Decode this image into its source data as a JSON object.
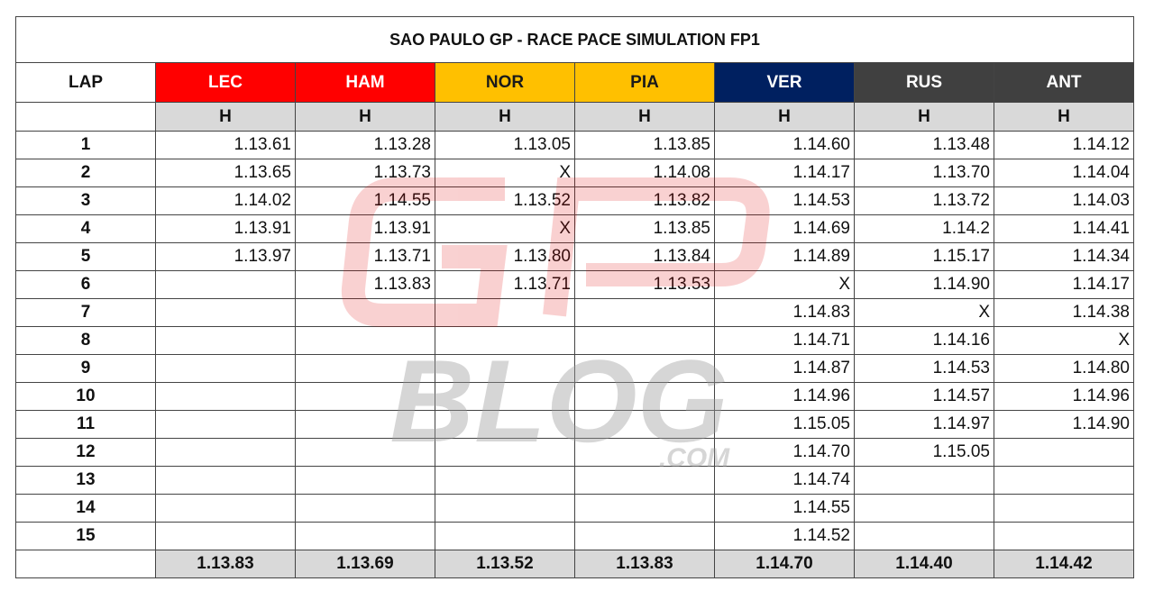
{
  "table": {
    "title": "SAO PAULO GP - RACE PACE SIMULATION FP1",
    "lap_header": "LAP",
    "drivers": [
      {
        "name": "LEC",
        "color": "#ff0000",
        "text_color": "#ffffff",
        "tyre": "H"
      },
      {
        "name": "HAM",
        "color": "#ff0000",
        "text_color": "#ffffff",
        "tyre": "H"
      },
      {
        "name": "NOR",
        "color": "#ffc000",
        "text_color": "#1a1a1a",
        "tyre": "H"
      },
      {
        "name": "PIA",
        "color": "#ffc000",
        "text_color": "#1a1a1a",
        "tyre": "H"
      },
      {
        "name": "VER",
        "color": "#002060",
        "text_color": "#ffffff",
        "tyre": "H"
      },
      {
        "name": "RUS",
        "color": "#404040",
        "text_color": "#ffffff",
        "tyre": "H"
      },
      {
        "name": "ANT",
        "color": "#404040",
        "text_color": "#ffffff",
        "tyre": "H"
      }
    ],
    "rows": [
      {
        "lap": 1,
        "times": [
          "1.13.61",
          "1.13.28",
          "1.13.05",
          "1.13.85",
          "1.14.60",
          "1.13.48",
          "1.14.12"
        ]
      },
      {
        "lap": 2,
        "times": [
          "1.13.65",
          "1.13.73",
          "X",
          "1.14.08",
          "1.14.17",
          "1.13.70",
          "1.14.04"
        ]
      },
      {
        "lap": 3,
        "times": [
          "1.14.02",
          "1.14.55",
          "1.13.52",
          "1.13.82",
          "1.14.53",
          "1.13.72",
          "1.14.03"
        ]
      },
      {
        "lap": 4,
        "times": [
          "1.13.91",
          "1.13.91",
          "X",
          "1.13.85",
          "1.14.69",
          "1.14.2",
          "1.14.41"
        ]
      },
      {
        "lap": 5,
        "times": [
          "1.13.97",
          "1.13.71",
          "1.13.80",
          "1.13.84",
          "1.14.89",
          "1.15.17",
          "1.14.34"
        ]
      },
      {
        "lap": 6,
        "times": [
          null,
          "1.13.83",
          "1.13.71",
          "1.13.53",
          "X",
          "1.14.90",
          "1.14.17"
        ]
      },
      {
        "lap": 7,
        "times": [
          null,
          null,
          null,
          null,
          "1.14.83",
          "X",
          "1.14.38"
        ]
      },
      {
        "lap": 8,
        "times": [
          null,
          null,
          null,
          null,
          "1.14.71",
          "1.14.16",
          "X"
        ]
      },
      {
        "lap": 9,
        "times": [
          null,
          null,
          null,
          null,
          "1.14.87",
          "1.14.53",
          "1.14.80"
        ]
      },
      {
        "lap": 10,
        "times": [
          null,
          null,
          null,
          null,
          "1.14.96",
          "1.14.57",
          "1.14.96"
        ]
      },
      {
        "lap": 11,
        "times": [
          null,
          null,
          null,
          null,
          "1.15.05",
          "1.14.97",
          "1.14.90"
        ]
      },
      {
        "lap": 12,
        "times": [
          null,
          null,
          null,
          null,
          "1.14.70",
          "1.15.05",
          null
        ]
      },
      {
        "lap": 13,
        "times": [
          null,
          null,
          null,
          null,
          "1.14.74",
          null,
          null
        ]
      },
      {
        "lap": 14,
        "times": [
          null,
          null,
          null,
          null,
          "1.14.55",
          null,
          null
        ]
      },
      {
        "lap": 15,
        "times": [
          null,
          null,
          null,
          null,
          "1.14.52",
          null,
          null
        ]
      }
    ],
    "averages": [
      "1.13.83",
      "1.13.69",
      "1.13.52",
      "1.13.83",
      "1.14.70",
      "1.14.40",
      "1.14.42"
    ]
  },
  "watermark": {
    "text": "BLOG",
    "suffix": ".COM"
  }
}
